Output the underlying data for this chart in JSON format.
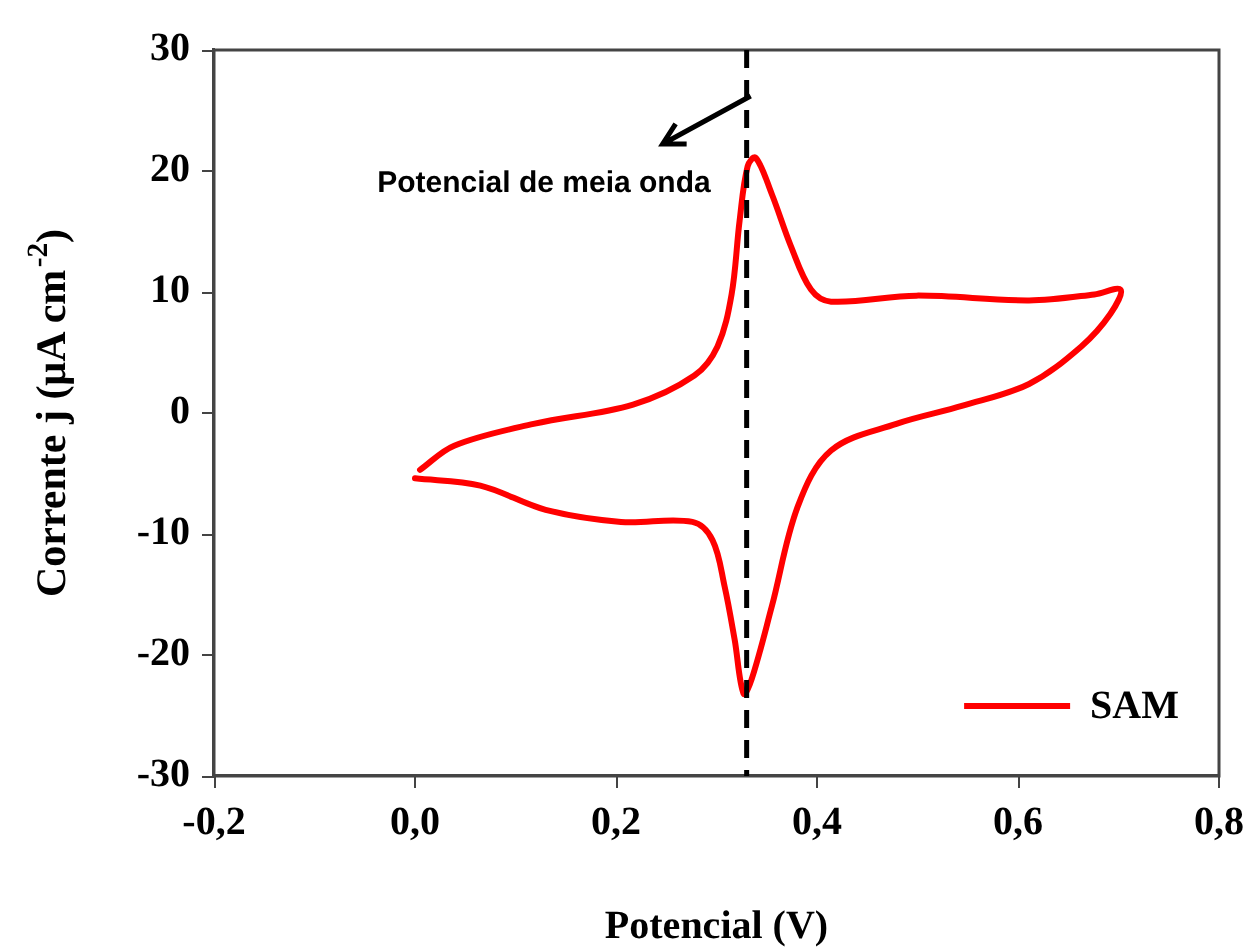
{
  "chart_data": {
    "type": "line",
    "xlabel": "Potencial (V)",
    "ylabel": "Corrente j (μA cm$^{-2}$)",
    "xlim": [
      -0.2,
      0.8
    ],
    "xticks": [
      {
        "value": -0.2,
        "label": "-0,2"
      },
      {
        "value": 0,
        "label": "0,0"
      },
      {
        "value": 0.2,
        "label": "0,2"
      },
      {
        "value": 0.4,
        "label": "0,4"
      },
      {
        "value": 0.6,
        "label": "0,6"
      },
      {
        "value": 0.8,
        "label": "0,8"
      }
    ],
    "ylim": [
      -30,
      30
    ],
    "yticks": [
      -30,
      -20,
      -10,
      0,
      10,
      20,
      30
    ],
    "legend": "bottom right",
    "marker": "none",
    "line_style": "solid",
    "ref_lines": [
      {
        "axis": "x",
        "value": 0.33,
        "label": "Potencial de meia onda",
        "color": "#000000",
        "line_style": "dashed"
      }
    ],
    "series": [
      {
        "name": "SAM",
        "color": "#ff0000",
        "x": [
          0.0,
          0.065,
          0.13,
          0.205,
          0.276,
          0.296,
          0.308,
          0.318,
          0.327,
          0.335,
          0.355,
          0.381,
          0.414,
          0.479,
          0.545,
          0.611,
          0.663,
          0.692,
          0.702,
          0.676,
          0.611,
          0.499,
          0.414,
          0.394,
          0.374,
          0.355,
          0.339,
          0.331,
          0.323,
          0.315,
          0.301,
          0.278,
          0.217,
          0.118,
          0.039,
          0.005
        ],
        "values": [
          -5.4,
          -6.0,
          -8.0,
          -9.0,
          -9.0,
          -10.5,
          -14.3,
          -18.7,
          -23.2,
          -22.0,
          -16.0,
          -7.7,
          -3.1,
          -0.9,
          0.6,
          2.4,
          5.5,
          8.2,
          10.2,
          9.8,
          9.3,
          9.7,
          9.2,
          10.2,
          13.8,
          18.1,
          21.1,
          20.4,
          15.9,
          9.8,
          5.5,
          3.1,
          0.7,
          -0.9,
          -2.7,
          -4.7
        ]
      }
    ]
  }
}
